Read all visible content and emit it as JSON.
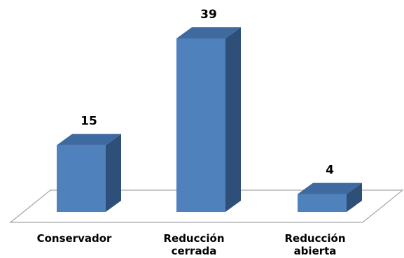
{
  "chart_data": {
    "type": "bar",
    "style": "3d-column",
    "categories": [
      [
        "Conservador"
      ],
      [
        "Reducción",
        "cerrada"
      ],
      [
        "Reducción",
        "abierta"
      ]
    ],
    "values": [
      15,
      39,
      4
    ],
    "title": "",
    "xlabel": "",
    "ylabel": "",
    "ylim": [
      0,
      39
    ],
    "grid": false,
    "legend": "none",
    "data_labels": true,
    "colors": {
      "bar_front": "#4f81bd",
      "bar_side": "#2e4f78",
      "bar_top": "#3f6aa0",
      "floor_stroke": "#a6a6a6",
      "floor_fill": "#ffffff"
    }
  }
}
